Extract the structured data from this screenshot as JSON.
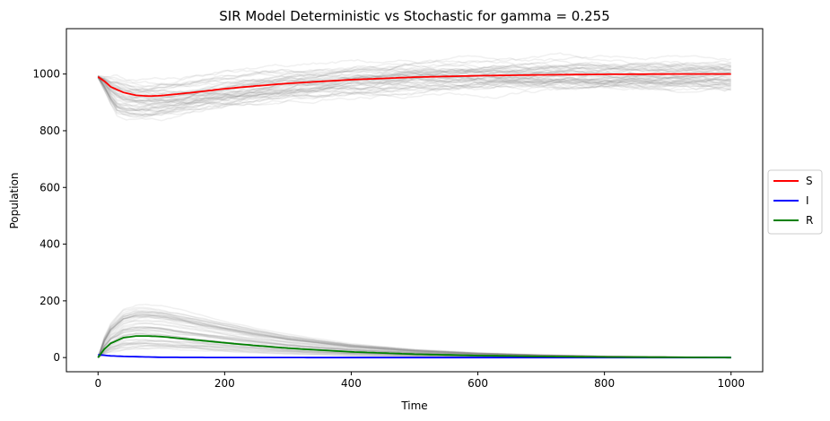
{
  "chart_data": {
    "type": "line",
    "title": "SIR Model Deterministic vs Stochastic for gamma = 0.255",
    "xlabel": "Time",
    "ylabel": "Population",
    "xlim": [
      -50,
      1050
    ],
    "ylim": [
      -50,
      1160
    ],
    "xticks": [
      0,
      200,
      400,
      600,
      800,
      1000
    ],
    "yticks": [
      0,
      200,
      400,
      600,
      800,
      1000
    ],
    "grid": false,
    "legend_position": "center-right",
    "series": [
      {
        "name": "S",
        "color": "#ff0000",
        "x": [
          0,
          10,
          20,
          40,
          60,
          80,
          100,
          150,
          200,
          250,
          300,
          400,
          500,
          600,
          700,
          800,
          900,
          1000
        ],
        "y": [
          990,
          975,
          955,
          935,
          925,
          922,
          924,
          935,
          948,
          958,
          967,
          980,
          989,
          994,
          997,
          999,
          1000,
          1000
        ]
      },
      {
        "name": "I",
        "color": "#0000ff",
        "x": [
          0,
          10,
          20,
          40,
          60,
          80,
          100,
          150,
          200,
          400,
          600,
          800,
          1000
        ],
        "y": [
          10,
          8,
          6,
          4,
          3,
          2,
          1,
          0.5,
          0.2,
          0,
          0,
          0,
          0
        ]
      },
      {
        "name": "R",
        "color": "#008000",
        "x": [
          0,
          10,
          20,
          40,
          60,
          80,
          100,
          150,
          200,
          250,
          300,
          400,
          500,
          600,
          700,
          800,
          900,
          1000
        ],
        "y": [
          0,
          30,
          50,
          70,
          76,
          76,
          74,
          63,
          52,
          42,
          33,
          20,
          12,
          7,
          4,
          2,
          1,
          0
        ]
      }
    ],
    "stochastic_traces": {
      "count": 50,
      "color": "#808080",
      "opacity": 0.12,
      "s_spread_peak": 120,
      "r_spread_peak": 160
    }
  }
}
